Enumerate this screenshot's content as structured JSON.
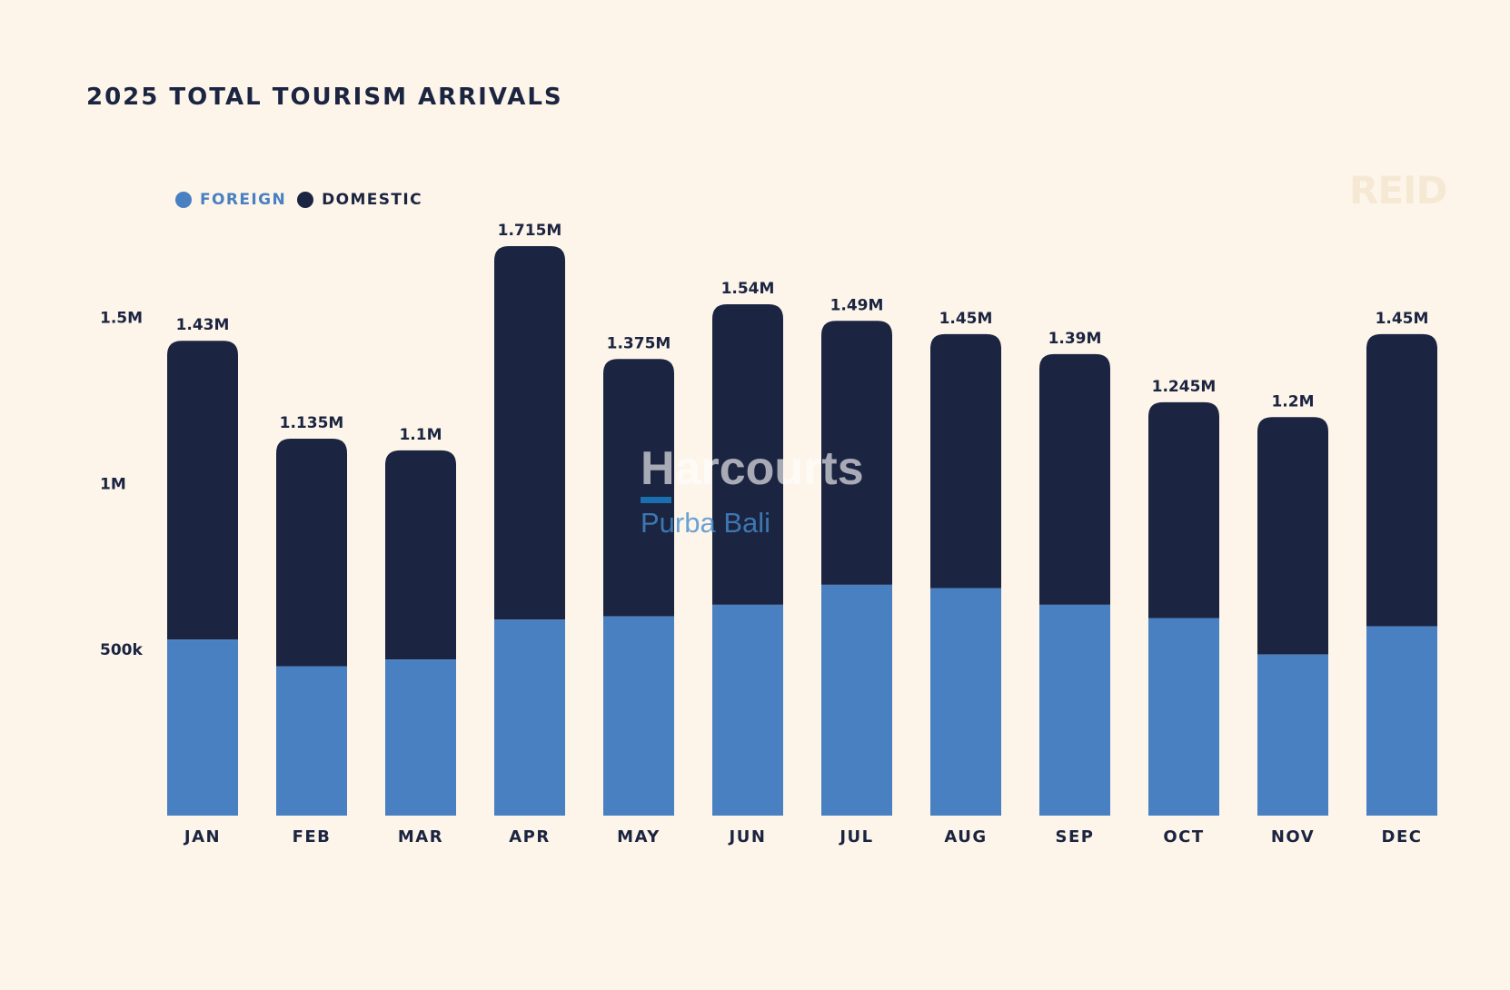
{
  "chart_data": {
    "type": "bar",
    "stacked": true,
    "title": "2025 TOTAL TOURISM ARRIVALS",
    "categories": [
      "JAN",
      "FEB",
      "MAR",
      "APR",
      "MAY",
      "JUN",
      "JUL",
      "AUG",
      "SEP",
      "OCT",
      "NOV",
      "DEC"
    ],
    "series": [
      {
        "name": "FOREIGN",
        "color": "#4880c2",
        "values": [
          530000,
          450000,
          470000,
          590000,
          600000,
          635000,
          695000,
          685000,
          635000,
          595000,
          485000,
          570000
        ]
      },
      {
        "name": "DOMESTIC",
        "color": "#1b2440",
        "values": [
          900000,
          685000,
          630000,
          1125000,
          775000,
          905000,
          795000,
          765000,
          755000,
          650000,
          715000,
          880000
        ]
      }
    ],
    "totals": [
      1430000,
      1135000,
      1100000,
      1715000,
      1375000,
      1540000,
      1490000,
      1450000,
      1390000,
      1245000,
      1200000,
      1450000
    ],
    "total_labels": [
      "1.43M",
      "1.135M",
      "1.1M",
      "1.715M",
      "1.375M",
      "1.54M",
      "1.49M",
      "1.45M",
      "1.39M",
      "1.245M",
      "1.2M",
      "1.45M"
    ],
    "y_ticks": [
      500000,
      1000000,
      1500000
    ],
    "y_tick_labels": [
      "500k",
      "1M",
      "1.5M"
    ],
    "ylim": [
      0,
      1715000
    ],
    "grid": false,
    "legend_position": "top-left"
  },
  "legend": {
    "foreign": {
      "label": "FOREIGN",
      "color": "#4880c2"
    },
    "domestic": {
      "label": "DOMESTIC",
      "color": "#1b2440"
    }
  },
  "brand_mark": "REID",
  "watermark": {
    "name": "Harcourts",
    "sub": "Purba Bali"
  }
}
